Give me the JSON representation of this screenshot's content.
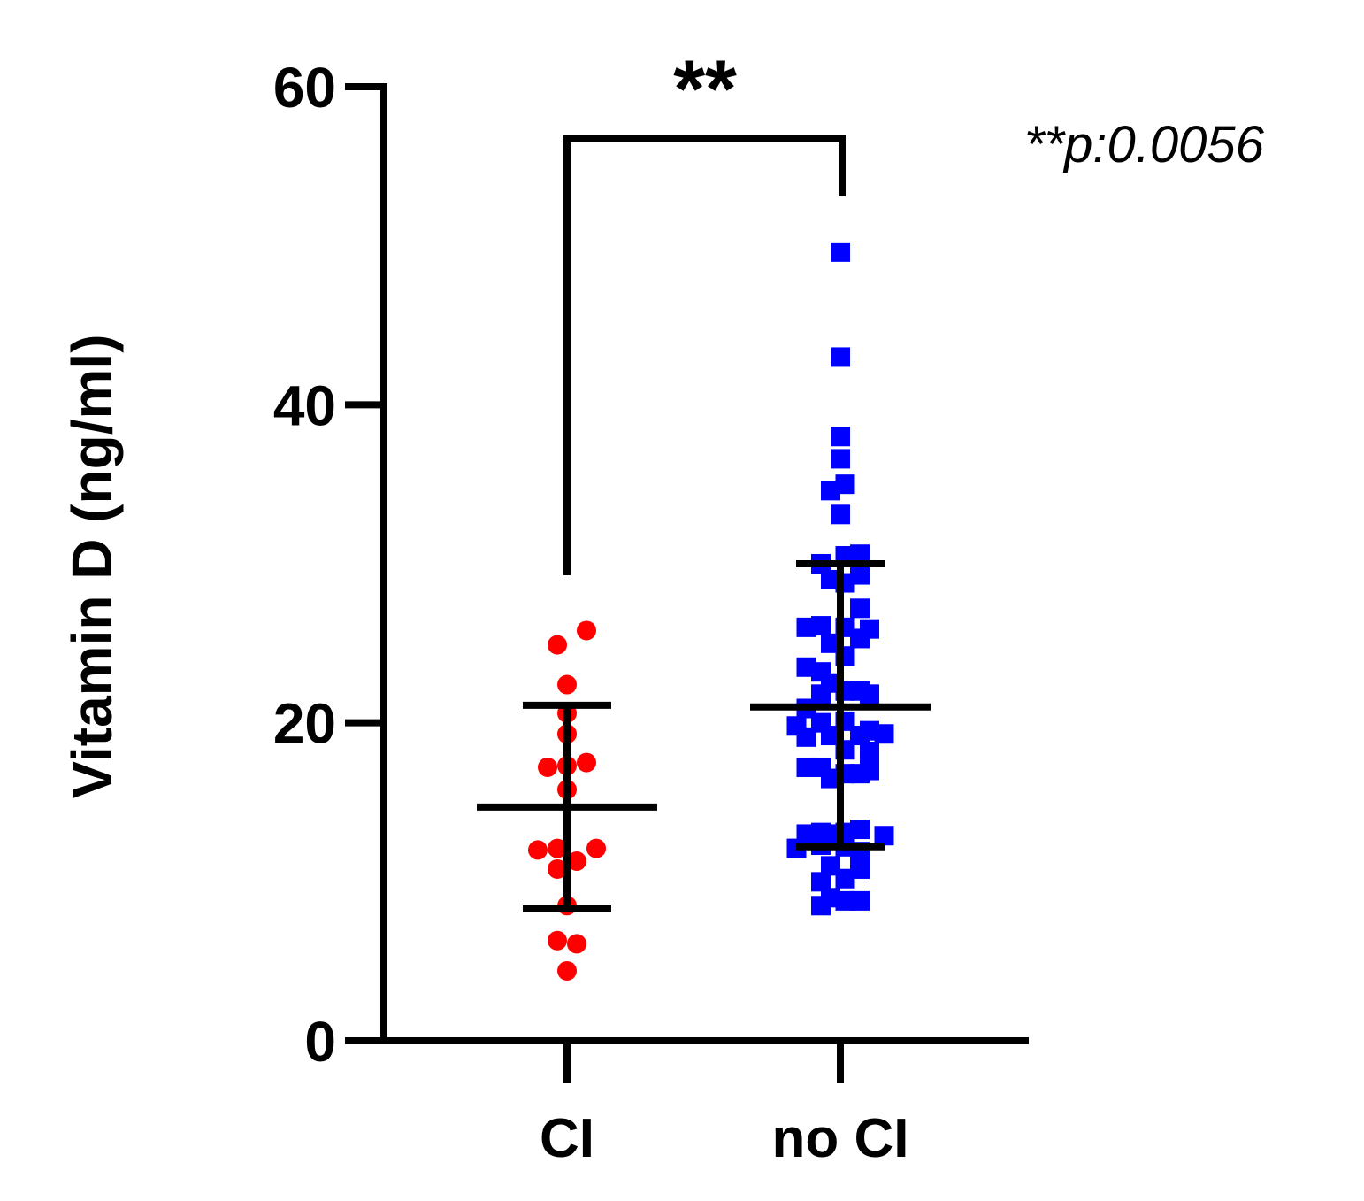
{
  "chart_data": {
    "type": "scatter",
    "ylabel": "Vitamin D (ng/ml)",
    "xlabel": "",
    "ylim": [
      0,
      60
    ],
    "yticks": [
      0,
      20,
      40,
      60
    ],
    "categories": [
      "CI",
      "no CI"
    ],
    "significance": {
      "stars": "**",
      "annotation": "**p:0.0056",
      "between": [
        "CI",
        "no CI"
      ]
    },
    "series": [
      {
        "category": "CI",
        "marker": "circle",
        "color": "#ff0000",
        "mean": 14.7,
        "sd_low": 8.3,
        "sd_high": 21.1,
        "points": [
          {
            "offset": 0.2,
            "y": 25.8
          },
          {
            "offset": -0.1,
            "y": 24.9
          },
          {
            "offset": 0.0,
            "y": 22.4
          },
          {
            "offset": 0.0,
            "y": 20.6
          },
          {
            "offset": 0.0,
            "y": 19.3
          },
          {
            "offset": -0.2,
            "y": 17.2
          },
          {
            "offset": 0.0,
            "y": 17.3
          },
          {
            "offset": 0.2,
            "y": 17.5
          },
          {
            "offset": 0.0,
            "y": 15.8
          },
          {
            "offset": -0.3,
            "y": 12.0
          },
          {
            "offset": -0.1,
            "y": 12.1
          },
          {
            "offset": 0.1,
            "y": 11.3
          },
          {
            "offset": 0.3,
            "y": 12.1
          },
          {
            "offset": -0.1,
            "y": 10.8
          },
          {
            "offset": 0.0,
            "y": 8.5
          },
          {
            "offset": -0.1,
            "y": 6.3
          },
          {
            "offset": 0.1,
            "y": 6.1
          },
          {
            "offset": 0.0,
            "y": 4.4
          }
        ]
      },
      {
        "category": "no CI",
        "marker": "square",
        "color": "#0000ff",
        "mean": 21.0,
        "sd_low": 12.2,
        "sd_high": 30.0,
        "points": [
          {
            "offset": 0.0,
            "y": 49.6
          },
          {
            "offset": 0.0,
            "y": 43.0
          },
          {
            "offset": 0.0,
            "y": 38.0
          },
          {
            "offset": 0.0,
            "y": 36.6
          },
          {
            "offset": -0.1,
            "y": 34.6
          },
          {
            "offset": 0.05,
            "y": 35.0
          },
          {
            "offset": 0.0,
            "y": 33.1
          },
          {
            "offset": -0.2,
            "y": 30.0
          },
          {
            "offset": 0.05,
            "y": 30.5
          },
          {
            "offset": 0.2,
            "y": 30.6
          },
          {
            "offset": -0.1,
            "y": 29.0
          },
          {
            "offset": 0.05,
            "y": 28.8
          },
          {
            "offset": 0.2,
            "y": 29.3
          },
          {
            "offset": 0.2,
            "y": 27.2
          },
          {
            "offset": -0.35,
            "y": 26.0
          },
          {
            "offset": -0.2,
            "y": 26.1
          },
          {
            "offset": 0.05,
            "y": 26.0
          },
          {
            "offset": 0.3,
            "y": 25.9
          },
          {
            "offset": -0.1,
            "y": 25.0
          },
          {
            "offset": 0.2,
            "y": 25.3
          },
          {
            "offset": 0.05,
            "y": 24.2
          },
          {
            "offset": -0.35,
            "y": 23.5
          },
          {
            "offset": -0.2,
            "y": 23.2
          },
          {
            "offset": -0.1,
            "y": 22.5
          },
          {
            "offset": -0.2,
            "y": 21.8
          },
          {
            "offset": 0.05,
            "y": 22.0
          },
          {
            "offset": 0.2,
            "y": 22.0
          },
          {
            "offset": 0.3,
            "y": 21.8
          },
          {
            "offset": -0.35,
            "y": 20.9
          },
          {
            "offset": -0.45,
            "y": 19.8
          },
          {
            "offset": -0.2,
            "y": 20.0
          },
          {
            "offset": 0.05,
            "y": 20.1
          },
          {
            "offset": -0.35,
            "y": 19.1
          },
          {
            "offset": -0.1,
            "y": 19.2
          },
          {
            "offset": 0.2,
            "y": 19.2
          },
          {
            "offset": 0.3,
            "y": 19.5
          },
          {
            "offset": 0.45,
            "y": 19.3
          },
          {
            "offset": 0.05,
            "y": 18.3
          },
          {
            "offset": 0.3,
            "y": 18.2
          },
          {
            "offset": -0.35,
            "y": 17.2
          },
          {
            "offset": -0.2,
            "y": 17.2
          },
          {
            "offset": -0.1,
            "y": 16.5
          },
          {
            "offset": 0.05,
            "y": 16.8
          },
          {
            "offset": 0.2,
            "y": 16.8
          },
          {
            "offset": 0.3,
            "y": 17.0
          },
          {
            "offset": -0.35,
            "y": 13.0
          },
          {
            "offset": -0.2,
            "y": 13.1
          },
          {
            "offset": -0.1,
            "y": 13.0
          },
          {
            "offset": 0.05,
            "y": 13.1
          },
          {
            "offset": 0.2,
            "y": 13.3
          },
          {
            "offset": 0.45,
            "y": 12.9
          },
          {
            "offset": -0.45,
            "y": 12.1
          },
          {
            "offset": -0.2,
            "y": 12.3
          },
          {
            "offset": 0.05,
            "y": 12.2
          },
          {
            "offset": 0.2,
            "y": 11.9
          },
          {
            "offset": -0.1,
            "y": 11.0
          },
          {
            "offset": 0.2,
            "y": 10.8
          },
          {
            "offset": -0.2,
            "y": 10.0
          },
          {
            "offset": 0.05,
            "y": 10.2
          },
          {
            "offset": -0.1,
            "y": 9.0
          },
          {
            "offset": 0.05,
            "y": 8.8
          },
          {
            "offset": 0.2,
            "y": 8.8
          },
          {
            "offset": -0.2,
            "y": 8.5
          }
        ]
      }
    ]
  }
}
